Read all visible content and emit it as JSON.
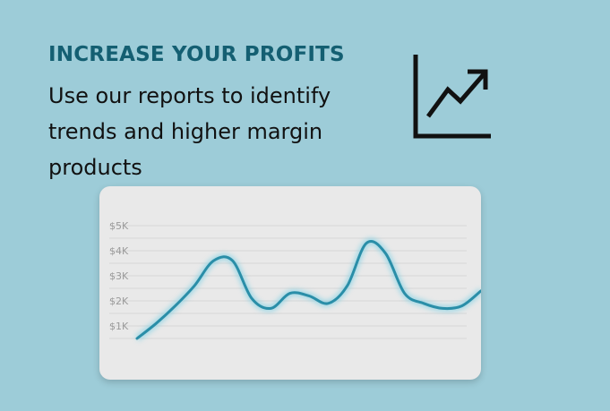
{
  "hero": {
    "headline": "INCREASE YOUR PROFITS",
    "subtext": "Use our reports to identify trends and higher margin products"
  },
  "icons": {
    "trend": "trend-up-chart-icon"
  },
  "colors": {
    "background": "#9dccd8",
    "headline": "#145f72",
    "line": "#2a8ea8",
    "card": "#e9e9e9"
  },
  "chart_data": {
    "type": "line",
    "y_ticks": [
      "$1K",
      "$2K",
      "$3K",
      "$4K",
      "$5K"
    ],
    "ylim": [
      0,
      5
    ],
    "grid": true,
    "series": [
      {
        "x": [
          0,
          1,
          2,
          3,
          4,
          5,
          6,
          7,
          8,
          9,
          10,
          11,
          12,
          13,
          14,
          15,
          16,
          17,
          18
        ],
        "values": [
          0.5,
          1.1,
          1.8,
          2.6,
          3.6,
          3.6,
          2.1,
          1.7,
          2.3,
          2.2,
          1.9,
          2.6,
          4.3,
          3.9,
          2.3,
          1.9,
          1.7,
          1.8,
          2.4
        ]
      }
    ]
  }
}
